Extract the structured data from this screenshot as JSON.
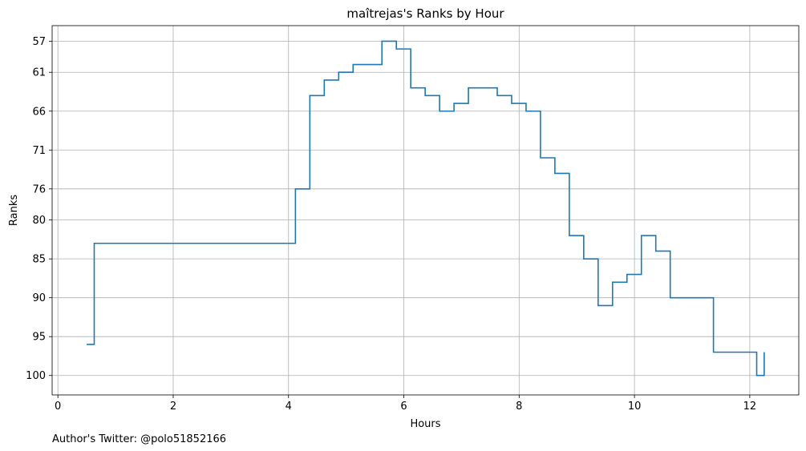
{
  "chart_data": {
    "type": "line",
    "step": "post",
    "title": "maîtrejas's Ranks by Hour",
    "xlabel": "Hours",
    "ylabel": "Ranks",
    "xlim": [
      -0.1,
      12.85
    ],
    "ylim": [
      102.5,
      55
    ],
    "y_inverted": true,
    "xticks": [
      0,
      2,
      4,
      6,
      8,
      10,
      12
    ],
    "yticks": [
      57,
      61,
      66,
      71,
      76,
      80,
      85,
      90,
      95,
      100
    ],
    "grid": true,
    "series": [
      {
        "color": "#1f77b4",
        "x": [
          0.5,
          0.63,
          2.38,
          4.12,
          4.37,
          4.62,
          4.87,
          5.12,
          5.62,
          5.87,
          6.12,
          6.37,
          6.62,
          6.87,
          7.12,
          7.62,
          7.87,
          8.12,
          8.37,
          8.62,
          8.87,
          9.12,
          9.37,
          9.62,
          9.87,
          10.12,
          10.37,
          10.62,
          11.37,
          12.12,
          12.25
        ],
        "y": [
          96,
          83,
          83,
          76,
          64,
          62,
          61,
          60,
          57,
          58,
          63,
          64,
          66,
          65,
          63,
          64,
          65,
          66,
          72,
          74,
          82,
          85,
          91,
          88,
          87,
          82,
          84,
          90,
          97,
          100,
          97
        ]
      }
    ]
  },
  "footer": {
    "credit": "Author's Twitter: @polo51852166"
  }
}
